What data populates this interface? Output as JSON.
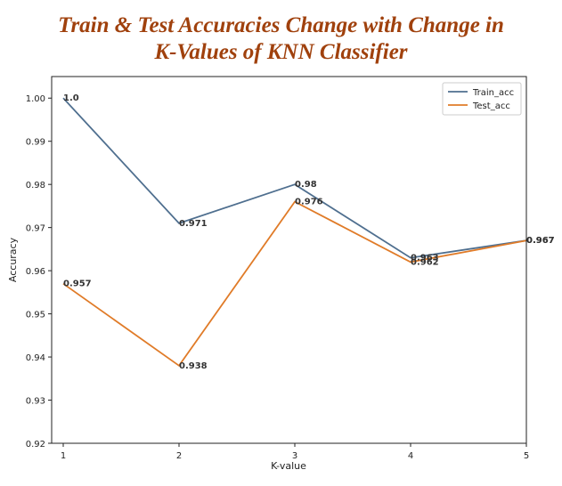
{
  "chart_data": {
    "type": "line",
    "title": [
      "Train & Test Accuracies Change with Change in",
      "K-Values of KNN Classifier"
    ],
    "xlabel": "K-value",
    "ylabel": "Accuracy",
    "x": [
      1,
      2,
      3,
      4,
      5
    ],
    "xticks": [
      "1",
      "2",
      "3",
      "4",
      "5"
    ],
    "ylim": [
      0.92,
      1.005
    ],
    "yticks": [
      "0.92",
      "0.93",
      "0.94",
      "0.95",
      "0.96",
      "0.97",
      "0.98",
      "0.99",
      "1.00"
    ],
    "grid": false,
    "legend_position": "top-right",
    "series": [
      {
        "name": "Train_acc",
        "color": "#4f6f8f",
        "values": [
          1.0,
          0.971,
          0.98,
          0.963,
          0.967
        ],
        "labels": [
          "1.0",
          "0.971",
          "0.98",
          "0.963",
          "0.967"
        ]
      },
      {
        "name": "Test_acc",
        "color": "#e07b28",
        "values": [
          0.957,
          0.938,
          0.976,
          0.962,
          0.967
        ],
        "labels": [
          "0.957",
          "0.938",
          "0.976",
          "0.962",
          "0.967"
        ]
      }
    ]
  }
}
